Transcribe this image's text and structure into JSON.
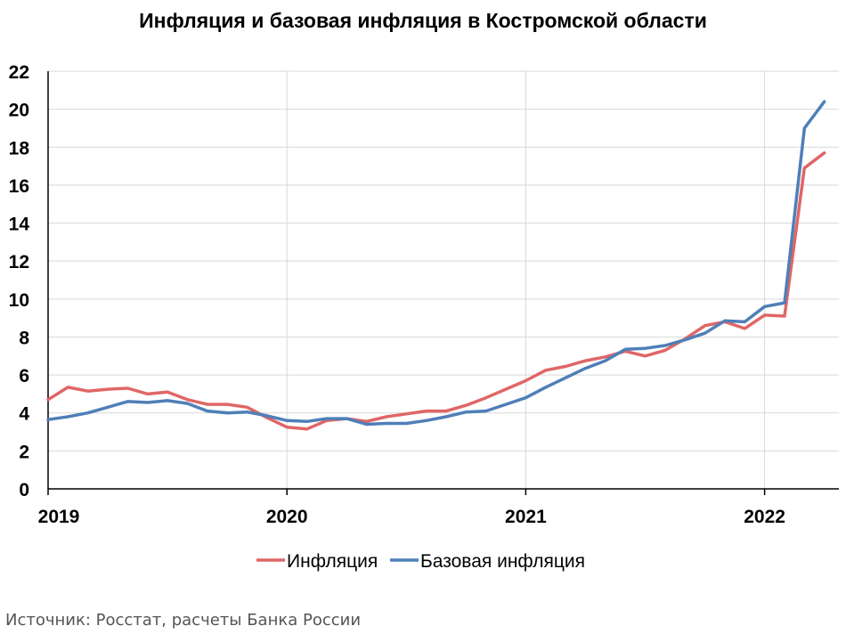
{
  "chart_data": {
    "type": "line",
    "title": "Инфляция и базовая инфляция в Костромской области",
    "x_ticks": [
      "2019",
      "2020",
      "2021",
      "2022"
    ],
    "x": [
      "2019-01",
      "2019-02",
      "2019-03",
      "2019-04",
      "2019-05",
      "2019-06",
      "2019-07",
      "2019-08",
      "2019-09",
      "2019-10",
      "2019-11",
      "2019-12",
      "2020-01",
      "2020-02",
      "2020-03",
      "2020-04",
      "2020-05",
      "2020-06",
      "2020-07",
      "2020-08",
      "2020-09",
      "2020-10",
      "2020-11",
      "2020-12",
      "2021-01",
      "2021-02",
      "2021-03",
      "2021-04",
      "2021-05",
      "2021-06",
      "2021-07",
      "2021-08",
      "2021-09",
      "2021-10",
      "2021-11",
      "2021-12",
      "2022-01",
      "2022-02",
      "2022-03",
      "2022-04"
    ],
    "ylim": [
      0,
      22
    ],
    "y_ticks": [
      0,
      2,
      4,
      6,
      8,
      10,
      12,
      14,
      16,
      18,
      20,
      22
    ],
    "grid": true,
    "legend_position": "bottom",
    "series": [
      {
        "name": "Инфляция",
        "color": "#E06666",
        "values": [
          4.7,
          5.35,
          5.15,
          5.25,
          5.3,
          5.0,
          5.1,
          4.7,
          4.45,
          4.45,
          4.3,
          3.75,
          3.25,
          3.15,
          3.6,
          3.7,
          3.55,
          3.8,
          3.95,
          4.1,
          4.1,
          4.4,
          4.8,
          5.25,
          5.7,
          6.25,
          6.45,
          6.75,
          6.95,
          7.25,
          7.0,
          7.3,
          7.9,
          8.6,
          8.8,
          8.45,
          9.15,
          9.1,
          16.9,
          17.7
        ]
      },
      {
        "name": "Базовая инфляция",
        "color": "#4F7FB8",
        "values": [
          3.65,
          3.8,
          4.0,
          4.3,
          4.6,
          4.55,
          4.65,
          4.5,
          4.1,
          4.0,
          4.05,
          3.85,
          3.6,
          3.55,
          3.7,
          3.7,
          3.4,
          3.45,
          3.45,
          3.6,
          3.8,
          4.05,
          4.1,
          4.45,
          4.8,
          5.35,
          5.85,
          6.35,
          6.75,
          7.35,
          7.4,
          7.55,
          7.85,
          8.2,
          8.85,
          8.8,
          9.6,
          9.8,
          19.0,
          20.4
        ]
      }
    ]
  },
  "source": "Источник: Росстат, расчеты Банка России"
}
